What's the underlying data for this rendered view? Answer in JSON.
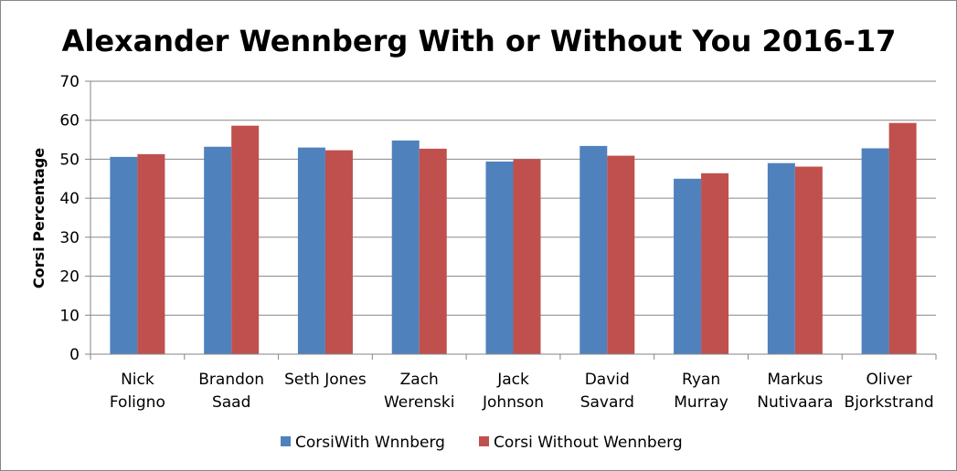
{
  "chart_data": {
    "type": "bar",
    "title": "Alexander Wennberg With or Without You 2016-17",
    "xlabel": "",
    "ylabel": "Corsi Percentage",
    "ylim": [
      0,
      70
    ],
    "yticks": [
      "0",
      "10",
      "20",
      "30",
      "40",
      "50",
      "60",
      "70"
    ],
    "grid": true,
    "legend": "bottom",
    "categories": [
      [
        "Nick",
        "Foligno"
      ],
      [
        "Brandon",
        "Saad"
      ],
      [
        "Seth Jones"
      ],
      [
        "Zach",
        "Werenski"
      ],
      [
        "Jack",
        "Johnson"
      ],
      [
        "David",
        "Savard"
      ],
      [
        "Ryan",
        "Murray"
      ],
      [
        "Markus",
        "Nutivaara"
      ],
      [
        "Oliver",
        "Bjorkstrand"
      ]
    ],
    "series": [
      {
        "name": "CorsiWith Wnnberg",
        "color": "#4f81bd",
        "values": [
          50.6,
          53.2,
          53.0,
          54.8,
          49.4,
          53.4,
          45.0,
          49.0,
          52.8
        ]
      },
      {
        "name": "Corsi Without Wennberg",
        "color": "#c0504d",
        "values": [
          51.3,
          58.6,
          52.3,
          52.7,
          50.0,
          50.9,
          46.4,
          48.1,
          59.3
        ]
      }
    ]
  }
}
